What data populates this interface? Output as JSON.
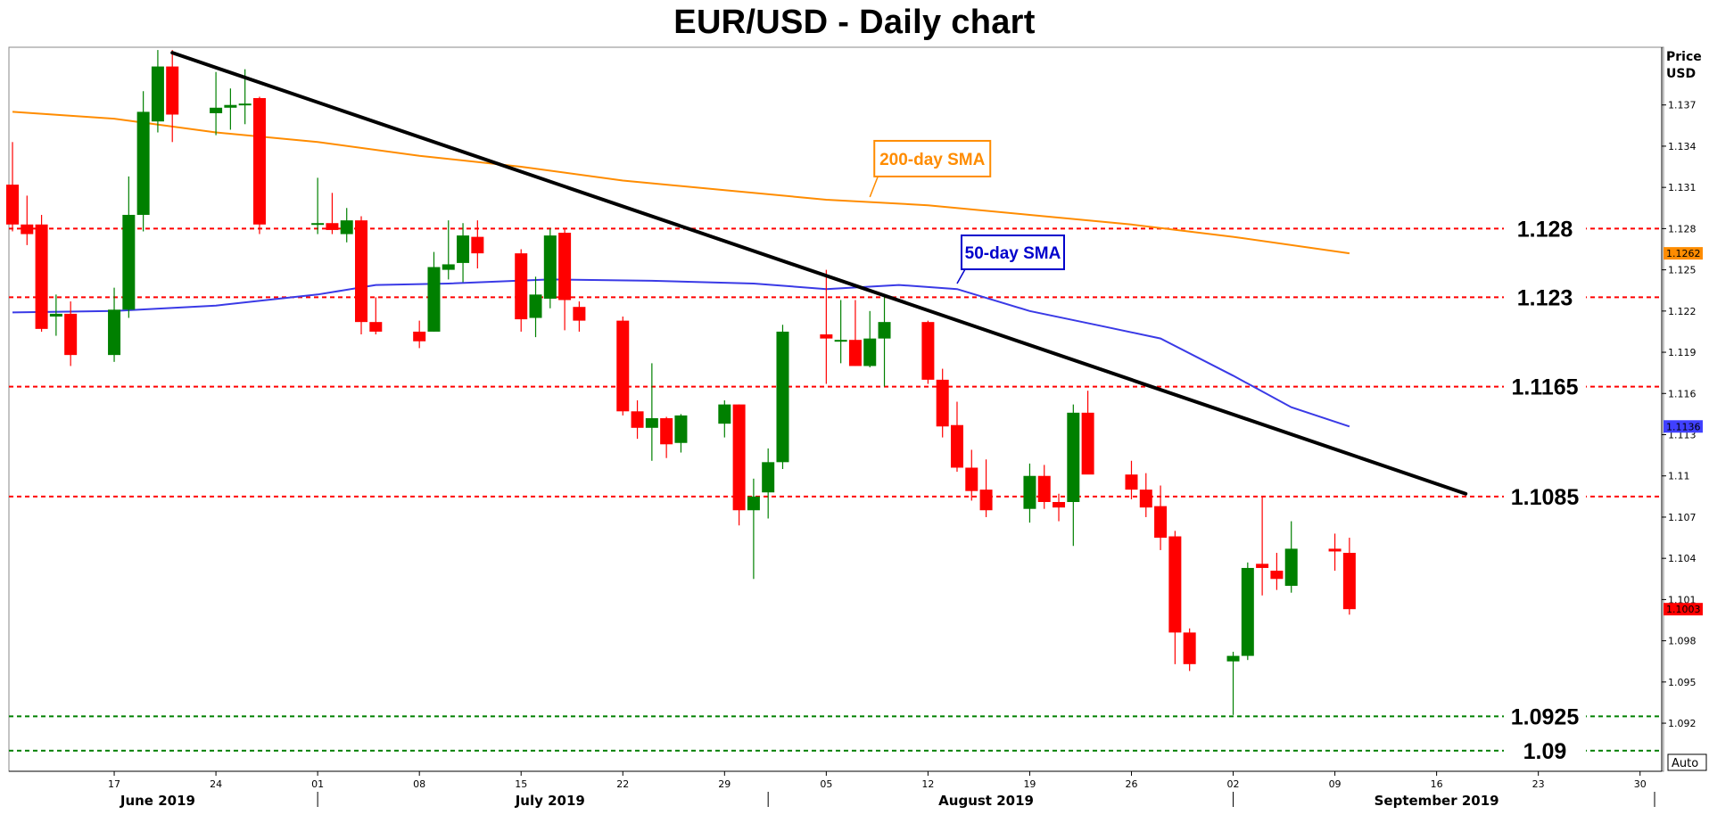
{
  "page": {
    "title": "EUR/USD - Daily chart"
  },
  "axis": {
    "price_title_line1": "Price",
    "price_title_line2": "USD",
    "auto_label": "Auto"
  },
  "colors": {
    "bull": "#008000",
    "bear": "#ff0000",
    "sma200": "#ff8c00",
    "sma50": "#3a3ae6",
    "trendline": "#000000",
    "resistance": "#ff0000",
    "support": "#008000"
  },
  "chart_data": {
    "type": "candlestick",
    "title": "EUR/USD - Daily chart",
    "ylabel": "Price USD",
    "ylim": [
      1.0885,
      1.1412
    ],
    "xlim": [
      "2019-06-10",
      "2019-10-01"
    ],
    "y_ticks": [
      "1.092",
      "1.095",
      "1.098",
      "1.101",
      "1.104",
      "1.107",
      "1.11",
      "1.113",
      "1.116",
      "1.119",
      "1.122",
      "1.125",
      "1.128",
      "1.131",
      "1.134",
      "1.137"
    ],
    "x_ticks": [
      {
        "date": "2019-06-17",
        "label": "17"
      },
      {
        "date": "2019-06-24",
        "label": "24"
      },
      {
        "date": "2019-07-01",
        "label": "01"
      },
      {
        "date": "2019-07-08",
        "label": "08"
      },
      {
        "date": "2019-07-15",
        "label": "15"
      },
      {
        "date": "2019-07-22",
        "label": "22"
      },
      {
        "date": "2019-07-29",
        "label": "29"
      },
      {
        "date": "2019-08-05",
        "label": "05"
      },
      {
        "date": "2019-08-12",
        "label": "12"
      },
      {
        "date": "2019-08-19",
        "label": "19"
      },
      {
        "date": "2019-08-26",
        "label": "26"
      },
      {
        "date": "2019-09-02",
        "label": "02"
      },
      {
        "date": "2019-09-09",
        "label": "09"
      },
      {
        "date": "2019-09-16",
        "label": "16"
      },
      {
        "date": "2019-09-23",
        "label": "23"
      },
      {
        "date": "2019-09-30",
        "label": "30"
      }
    ],
    "months": [
      {
        "label": "June 2019",
        "center": "2019-06-20"
      },
      {
        "label": "July 2019",
        "center": "2019-07-17"
      },
      {
        "label": "August 2019",
        "center": "2019-08-16"
      },
      {
        "label": "September 2019",
        "center": "2019-09-16"
      }
    ],
    "month_dividers": [
      "2019-07-01",
      "2019-08-01",
      "2019-09-02",
      "2019-10-01"
    ],
    "candles": [
      {
        "d": "2019-06-10",
        "o": 1.1312,
        "h": 1.1343,
        "l": 1.1278,
        "c": 1.1283
      },
      {
        "d": "2019-06-11",
        "o": 1.1283,
        "h": 1.1304,
        "l": 1.1268,
        "c": 1.1276
      },
      {
        "d": "2019-06-12",
        "o": 1.1283,
        "h": 1.129,
        "l": 1.1205,
        "c": 1.1207
      },
      {
        "d": "2019-06-13",
        "o": 1.1216,
        "h": 1.1232,
        "l": 1.1202,
        "c": 1.1218
      },
      {
        "d": "2019-06-14",
        "o": 1.1218,
        "h": 1.1227,
        "l": 1.118,
        "c": 1.1188
      },
      {
        "d": "2019-06-17",
        "o": 1.1188,
        "h": 1.1237,
        "l": 1.1183,
        "c": 1.1221
      },
      {
        "d": "2019-06-18",
        "o": 1.1221,
        "h": 1.1318,
        "l": 1.1215,
        "c": 1.129
      },
      {
        "d": "2019-06-19",
        "o": 1.129,
        "h": 1.138,
        "l": 1.1278,
        "c": 1.1365
      },
      {
        "d": "2019-06-20",
        "o": 1.1358,
        "h": 1.141,
        "l": 1.135,
        "c": 1.1398
      },
      {
        "d": "2019-06-21",
        "o": 1.1398,
        "h": 1.141,
        "l": 1.1343,
        "c": 1.1363
      },
      {
        "d": "2019-06-24",
        "o": 1.1364,
        "h": 1.1394,
        "l": 1.1348,
        "c": 1.1368
      },
      {
        "d": "2019-06-25",
        "o": 1.1368,
        "h": 1.1382,
        "l": 1.1352,
        "c": 1.137
      },
      {
        "d": "2019-06-26",
        "o": 1.137,
        "h": 1.1396,
        "l": 1.1356,
        "c": 1.1371
      },
      {
        "d": "2019-06-27",
        "o": 1.1375,
        "h": 1.1376,
        "l": 1.1276,
        "c": 1.1283
      },
      {
        "d": "2019-07-01",
        "o": 1.1283,
        "h": 1.1317,
        "l": 1.1276,
        "c": 1.1284
      },
      {
        "d": "2019-07-02",
        "o": 1.1284,
        "h": 1.1306,
        "l": 1.1276,
        "c": 1.1279
      },
      {
        "d": "2019-07-03",
        "o": 1.1276,
        "h": 1.1295,
        "l": 1.127,
        "c": 1.1286
      },
      {
        "d": "2019-07-04",
        "o": 1.1286,
        "h": 1.1289,
        "l": 1.1203,
        "c": 1.1212
      },
      {
        "d": "2019-07-05",
        "o": 1.1212,
        "h": 1.123,
        "l": 1.1203,
        "c": 1.1205
      },
      {
        "d": "2019-07-08",
        "o": 1.1205,
        "h": 1.1213,
        "l": 1.1193,
        "c": 1.1198
      },
      {
        "d": "2019-07-09",
        "o": 1.1205,
        "h": 1.1263,
        "l": 1.1205,
        "c": 1.1252
      },
      {
        "d": "2019-07-10",
        "o": 1.125,
        "h": 1.1286,
        "l": 1.1243,
        "c": 1.1254
      },
      {
        "d": "2019-07-11",
        "o": 1.1255,
        "h": 1.1284,
        "l": 1.1241,
        "c": 1.1275
      },
      {
        "d": "2019-07-12",
        "o": 1.1274,
        "h": 1.1286,
        "l": 1.1251,
        "c": 1.1262
      },
      {
        "d": "2019-07-15",
        "o": 1.1262,
        "h": 1.1265,
        "l": 1.1205,
        "c": 1.1214
      },
      {
        "d": "2019-07-16",
        "o": 1.1215,
        "h": 1.1245,
        "l": 1.1201,
        "c": 1.1232
      },
      {
        "d": "2019-07-17",
        "o": 1.1229,
        "h": 1.128,
        "l": 1.1222,
        "c": 1.1275
      },
      {
        "d": "2019-07-18",
        "o": 1.1277,
        "h": 1.128,
        "l": 1.1206,
        "c": 1.1228
      },
      {
        "d": "2019-07-19",
        "o": 1.1223,
        "h": 1.1227,
        "l": 1.1205,
        "c": 1.1213
      },
      {
        "d": "2019-07-22",
        "o": 1.1213,
        "h": 1.1216,
        "l": 1.1144,
        "c": 1.1147
      },
      {
        "d": "2019-07-23",
        "o": 1.1147,
        "h": 1.1155,
        "l": 1.1127,
        "c": 1.1135
      },
      {
        "d": "2019-07-24",
        "o": 1.1135,
        "h": 1.1182,
        "l": 1.1111,
        "c": 1.1142
      },
      {
        "d": "2019-07-25",
        "o": 1.1142,
        "h": 1.1143,
        "l": 1.1113,
        "c": 1.1123
      },
      {
        "d": "2019-07-26",
        "o": 1.1124,
        "h": 1.1145,
        "l": 1.1117,
        "c": 1.1144
      },
      {
        "d": "2019-07-29",
        "o": 1.1138,
        "h": 1.1155,
        "l": 1.1128,
        "c": 1.1152
      },
      {
        "d": "2019-07-30",
        "o": 1.1152,
        "h": 1.1152,
        "l": 1.1064,
        "c": 1.1075
      },
      {
        "d": "2019-07-31",
        "o": 1.1075,
        "h": 1.1098,
        "l": 1.1025,
        "c": 1.1085
      },
      {
        "d": "2019-08-01",
        "o": 1.1088,
        "h": 1.112,
        "l": 1.1069,
        "c": 1.111
      },
      {
        "d": "2019-08-02",
        "o": 1.111,
        "h": 1.121,
        "l": 1.1105,
        "c": 1.1205
      },
      {
        "d": "2019-08-05",
        "o": 1.1203,
        "h": 1.125,
        "l": 1.1167,
        "c": 1.12
      },
      {
        "d": "2019-08-06",
        "o": 1.1198,
        "h": 1.1228,
        "l": 1.1182,
        "c": 1.1199
      },
      {
        "d": "2019-08-07",
        "o": 1.1199,
        "h": 1.1228,
        "l": 1.118,
        "c": 1.118
      },
      {
        "d": "2019-08-08",
        "o": 1.118,
        "h": 1.122,
        "l": 1.1179,
        "c": 1.12
      },
      {
        "d": "2019-08-09",
        "o": 1.12,
        "h": 1.123,
        "l": 1.1165,
        "c": 1.1212
      },
      {
        "d": "2019-08-12",
        "o": 1.1212,
        "h": 1.1213,
        "l": 1.1167,
        "c": 1.117
      },
      {
        "d": "2019-08-13",
        "o": 1.117,
        "h": 1.1178,
        "l": 1.1128,
        "c": 1.1136
      },
      {
        "d": "2019-08-14",
        "o": 1.1137,
        "h": 1.1154,
        "l": 1.1103,
        "c": 1.1106
      },
      {
        "d": "2019-08-15",
        "o": 1.1106,
        "h": 1.1119,
        "l": 1.1082,
        "c": 1.1089
      },
      {
        "d": "2019-08-16",
        "o": 1.109,
        "h": 1.1112,
        "l": 1.107,
        "c": 1.1075
      },
      {
        "d": "2019-08-19",
        "o": 1.1076,
        "h": 1.1109,
        "l": 1.1066,
        "c": 1.11
      },
      {
        "d": "2019-08-20",
        "o": 1.11,
        "h": 1.1108,
        "l": 1.1076,
        "c": 1.1081
      },
      {
        "d": "2019-08-21",
        "o": 1.1081,
        "h": 1.1087,
        "l": 1.1067,
        "c": 1.1077
      },
      {
        "d": "2019-08-22",
        "o": 1.1081,
        "h": 1.1152,
        "l": 1.1049,
        "c": 1.1146
      },
      {
        "d": "2019-08-23",
        "o": 1.1146,
        "h": 1.1162,
        "l": 1.1102,
        "c": 1.1101
      },
      {
        "d": "2019-08-26",
        "o": 1.1101,
        "h": 1.1111,
        "l": 1.1083,
        "c": 1.109
      },
      {
        "d": "2019-08-27",
        "o": 1.109,
        "h": 1.1102,
        "l": 1.107,
        "c": 1.1077
      },
      {
        "d": "2019-08-28",
        "o": 1.1078,
        "h": 1.1093,
        "l": 1.1046,
        "c": 1.1055
      },
      {
        "d": "2019-08-29",
        "o": 1.1056,
        "h": 1.106,
        "l": 1.0963,
        "c": 1.0986
      },
      {
        "d": "2019-08-30",
        "o": 1.0986,
        "h": 1.0989,
        "l": 1.0958,
        "c": 1.0963
      },
      {
        "d": "2019-09-02",
        "o": 1.0965,
        "h": 1.0972,
        "l": 1.0926,
        "c": 1.0969
      },
      {
        "d": "2019-09-03",
        "o": 1.0969,
        "h": 1.1037,
        "l": 1.0966,
        "c": 1.1033
      },
      {
        "d": "2019-09-04",
        "o": 1.1036,
        "h": 1.1085,
        "l": 1.1013,
        "c": 1.1033
      },
      {
        "d": "2019-09-05",
        "o": 1.1031,
        "h": 1.1044,
        "l": 1.1017,
        "c": 1.1025
      },
      {
        "d": "2019-09-06",
        "o": 1.102,
        "h": 1.1067,
        "l": 1.1015,
        "c": 1.1047
      },
      {
        "d": "2019-09-09",
        "o": 1.1047,
        "h": 1.1058,
        "l": 1.1031,
        "c": 1.1045
      },
      {
        "d": "2019-09-10",
        "o": 1.1044,
        "h": 1.1055,
        "l": 1.0999,
        "c": 1.1003
      }
    ],
    "sma200": {
      "name": "200-day SMA",
      "points": [
        {
          "d": "2019-06-10",
          "v": 1.1365
        },
        {
          "d": "2019-06-17",
          "v": 1.136
        },
        {
          "d": "2019-06-24",
          "v": 1.135
        },
        {
          "d": "2019-07-01",
          "v": 1.1343
        },
        {
          "d": "2019-07-08",
          "v": 1.1333
        },
        {
          "d": "2019-07-15",
          "v": 1.1325
        },
        {
          "d": "2019-07-22",
          "v": 1.1315
        },
        {
          "d": "2019-07-29",
          "v": 1.1308
        },
        {
          "d": "2019-08-05",
          "v": 1.1301
        },
        {
          "d": "2019-08-12",
          "v": 1.1297
        },
        {
          "d": "2019-08-19",
          "v": 1.129
        },
        {
          "d": "2019-08-26",
          "v": 1.1283
        },
        {
          "d": "2019-09-02",
          "v": 1.1274
        },
        {
          "d": "2019-09-10",
          "v": 1.1262
        }
      ]
    },
    "sma50": {
      "name": "50-day SMA",
      "points": [
        {
          "d": "2019-06-10",
          "v": 1.1219
        },
        {
          "d": "2019-06-17",
          "v": 1.122
        },
        {
          "d": "2019-06-24",
          "v": 1.1224
        },
        {
          "d": "2019-07-01",
          "v": 1.1232
        },
        {
          "d": "2019-07-05",
          "v": 1.1239
        },
        {
          "d": "2019-07-10",
          "v": 1.124
        },
        {
          "d": "2019-07-17",
          "v": 1.1243
        },
        {
          "d": "2019-07-24",
          "v": 1.1242
        },
        {
          "d": "2019-07-31",
          "v": 1.124
        },
        {
          "d": "2019-08-05",
          "v": 1.1236
        },
        {
          "d": "2019-08-10",
          "v": 1.1239
        },
        {
          "d": "2019-08-14",
          "v": 1.1236
        },
        {
          "d": "2019-08-19",
          "v": 1.122
        },
        {
          "d": "2019-08-24",
          "v": 1.1209
        },
        {
          "d": "2019-08-28",
          "v": 1.12
        },
        {
          "d": "2019-09-02",
          "v": 1.1173
        },
        {
          "d": "2019-09-06",
          "v": 1.115
        },
        {
          "d": "2019-09-10",
          "v": 1.1136
        }
      ]
    },
    "trendline": [
      {
        "d": "2019-06-21",
        "v": 1.1408
      },
      {
        "d": "2019-09-18",
        "v": 1.1087
      }
    ],
    "levels": [
      {
        "value": 1.128,
        "label": "1.128",
        "kind": "resistance"
      },
      {
        "value": 1.123,
        "label": "1.123",
        "kind": "resistance"
      },
      {
        "value": 1.1165,
        "label": "1.1165",
        "kind": "resistance"
      },
      {
        "value": 1.1085,
        "label": "1.1085",
        "kind": "resistance"
      },
      {
        "value": 1.0925,
        "label": "1.0925",
        "kind": "support"
      },
      {
        "value": 1.09,
        "label": "1.09",
        "kind": "support"
      }
    ],
    "annotations": [
      {
        "text": "200-day SMA",
        "color": "#ff8c00",
        "anchor_d": "2019-08-08",
        "anchor_v": 1.1303
      },
      {
        "text": "50-day SMA",
        "color": "#0000cc",
        "anchor_d": "2019-08-14",
        "anchor_v": 1.124
      }
    ],
    "price_tags": [
      {
        "text": "1.1262",
        "value": 1.1262,
        "bg": "#ff8c00",
        "fg": "#000000"
      },
      {
        "text": "1.1136",
        "value": 1.1136,
        "bg": "#4040ff",
        "fg": "#000000"
      },
      {
        "text": "1.1003",
        "value": 1.1003,
        "bg": "#ff0000",
        "fg": "#000000"
      }
    ]
  }
}
